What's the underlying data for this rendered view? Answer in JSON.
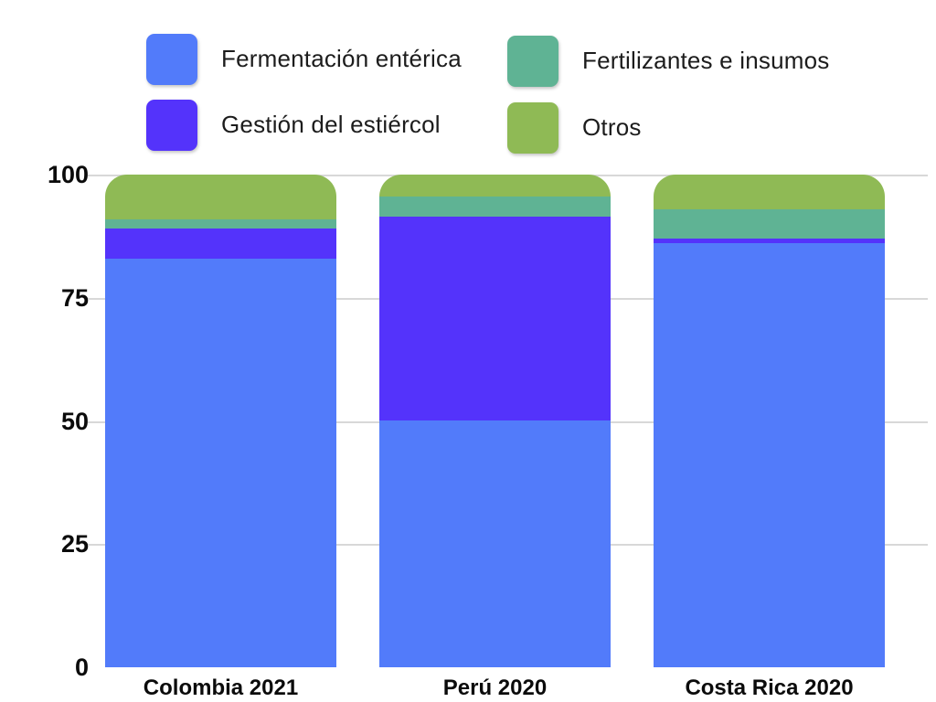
{
  "legend": {
    "items": [
      {
        "label": "Fermentación entérica",
        "color": "#527BFA"
      },
      {
        "label": "Gestión del estiércol",
        "color": "#5433FB"
      },
      {
        "label": "Fertilizantes e insumos",
        "color": "#5FB394"
      },
      {
        "label": "Otros",
        "color": "#8FBA55"
      }
    ]
  },
  "chart_data": {
    "type": "bar",
    "stacked": true,
    "title": "",
    "xlabel": "",
    "ylabel": "",
    "categories": [
      "Colombia 2021",
      "Perú 2020",
      "Costa Rica 2020"
    ],
    "series": [
      {
        "name": "Fermentación entérica",
        "color": "#527BFA",
        "values": [
          83,
          50,
          86
        ]
      },
      {
        "name": "Gestión del estiércol",
        "color": "#5433FB",
        "values": [
          6,
          41.5,
          1
        ]
      },
      {
        "name": "Fertilizantes e insumos",
        "color": "#5FB394",
        "values": [
          2,
          4,
          6
        ]
      },
      {
        "name": "Otros",
        "color": "#8FBA55",
        "values": [
          9,
          4.5,
          7
        ]
      }
    ],
    "ylim": [
      0,
      100
    ],
    "yticks": [
      0,
      25,
      50,
      75,
      100
    ],
    "grid": true,
    "gridline_color": "#d8d8d8",
    "legend_position": "top"
  },
  "colors": {
    "background": "#ffffff",
    "text": "#1c1c1c"
  }
}
